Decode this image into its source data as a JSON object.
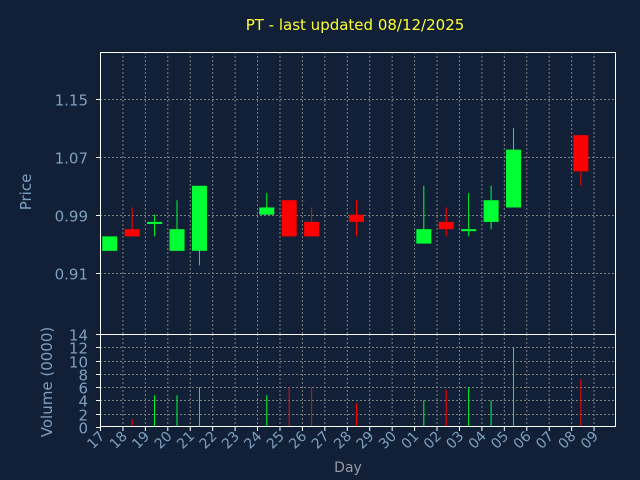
{
  "chart_data": {
    "type": "candlestick",
    "title": "PT - last updated 08/12/2025",
    "price_panel": {
      "ylabel": "Price",
      "ylim": [
        0.825,
        1.215
      ],
      "yticks": [
        0.91,
        0.99,
        1.07,
        1.15
      ],
      "ytick_labels": [
        "0.91",
        "0.99",
        "1.07",
        "1.15"
      ]
    },
    "volume_panel": {
      "ylabel": "Volume (0000)",
      "ylim": [
        0,
        14
      ],
      "yticks": [
        0,
        2,
        4,
        6,
        8,
        10,
        12,
        14
      ],
      "ytick_labels": [
        "0",
        "2",
        "4",
        "6",
        "8",
        "10",
        "12",
        "14"
      ]
    },
    "xlabel": "Day",
    "grid": true,
    "x_ticks": [
      "17",
      "18",
      "19",
      "20",
      "21",
      "22",
      "23",
      "24",
      "25",
      "26",
      "27",
      "28",
      "29",
      "30",
      "01",
      "02",
      "03",
      "04",
      "05",
      "06",
      "07",
      "08",
      "09"
    ],
    "candles": [
      {
        "x": 0,
        "open": 0.94,
        "close": 0.96,
        "high": 0.96,
        "low": 0.94,
        "volume": 0,
        "direction": "up"
      },
      {
        "x": 1,
        "open": 0.97,
        "close": 0.96,
        "high": 1.0,
        "low": 0.96,
        "volume": 1.2,
        "direction": "down"
      },
      {
        "x": 2,
        "open": 0.98,
        "close": 0.98,
        "high": 0.99,
        "low": 0.96,
        "volume": 4.8,
        "direction": "up"
      },
      {
        "x": 3,
        "open": 0.94,
        "close": 0.97,
        "high": 1.01,
        "low": 0.94,
        "volume": 4.8,
        "direction": "up"
      },
      {
        "x": 4,
        "open": 0.94,
        "close": 1.03,
        "high": 1.03,
        "low": 0.92,
        "volume": 6.0,
        "direction": "up"
      },
      {
        "x": 7,
        "open": 0.99,
        "close": 1.0,
        "high": 1.02,
        "low": 0.99,
        "volume": 4.8,
        "direction": "up"
      },
      {
        "x": 8,
        "open": 1.01,
        "close": 0.96,
        "high": 1.01,
        "low": 0.96,
        "volume": 6.0,
        "direction": "down"
      },
      {
        "x": 9,
        "open": 0.98,
        "close": 0.96,
        "high": 1.0,
        "low": 0.96,
        "volume": 6.0,
        "direction": "down"
      },
      {
        "x": 11,
        "open": 0.99,
        "close": 0.98,
        "high": 1.01,
        "low": 0.96,
        "volume": 3.6,
        "direction": "down"
      },
      {
        "x": 14,
        "open": 0.95,
        "close": 0.97,
        "high": 1.03,
        "low": 0.95,
        "volume": 4.0,
        "direction": "up"
      },
      {
        "x": 15,
        "open": 0.98,
        "close": 0.97,
        "high": 1.0,
        "low": 0.96,
        "volume": 5.6,
        "direction": "down"
      },
      {
        "x": 16,
        "open": 0.97,
        "close": 0.97,
        "high": 1.02,
        "low": 0.96,
        "volume": 6.0,
        "direction": "up"
      },
      {
        "x": 17,
        "open": 0.98,
        "close": 1.01,
        "high": 1.03,
        "low": 0.97,
        "volume": 4.0,
        "direction": "up"
      },
      {
        "x": 18,
        "open": 1.0,
        "close": 1.08,
        "high": 1.11,
        "low": 1.0,
        "volume": 12.0,
        "direction": "up"
      },
      {
        "x": 21,
        "open": 1.1,
        "close": 1.05,
        "high": 1.1,
        "low": 1.03,
        "volume": 7.2,
        "direction": "down"
      }
    ],
    "colors": {
      "up": "#00ff33",
      "down": "#ff0000",
      "background": "#112036",
      "grid": "#7f7f7f",
      "axis": "#ffffff",
      "title": "#ffff33",
      "labels": "#7f9fbf"
    }
  }
}
